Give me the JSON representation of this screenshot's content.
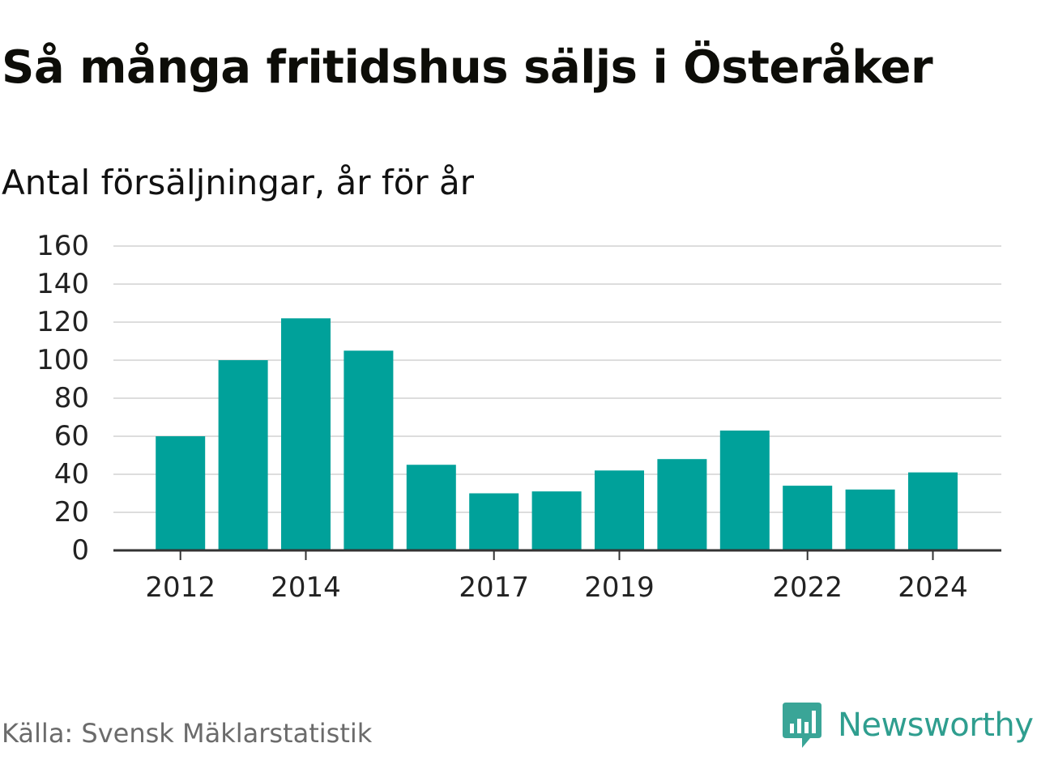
{
  "title": "Så många fritidshus säljs i Österåker",
  "subtitle": "Antal försäljningar, år för år",
  "source": "Källa: Svensk Mäklarstatistik",
  "brand": {
    "name": "Newsworthy",
    "icon": "newsworthy-logo-icon",
    "color": "#2f9e8f"
  },
  "chart_data": {
    "type": "bar",
    "title": "Så många fritidshus säljs i Österåker",
    "subtitle": "Antal försäljningar, år för år",
    "xlabel": "",
    "ylabel": "",
    "categories": [
      "2012",
      "2013",
      "2014",
      "2015",
      "2016",
      "2017",
      "2018",
      "2019",
      "2020",
      "2021",
      "2022",
      "2023",
      "2024"
    ],
    "values": [
      60,
      100,
      122,
      105,
      45,
      30,
      31,
      42,
      48,
      63,
      34,
      32,
      41
    ],
    "x_tick_labels": [
      "2012",
      "2014",
      "2017",
      "2019",
      "2022",
      "2024"
    ],
    "y_ticks": [
      0,
      20,
      40,
      60,
      80,
      100,
      120,
      140,
      160
    ],
    "ylim": [
      0,
      160
    ],
    "grid": true,
    "bar_color": "#00a19a",
    "grid_color": "#dddddd",
    "axis_color": "#333333"
  }
}
